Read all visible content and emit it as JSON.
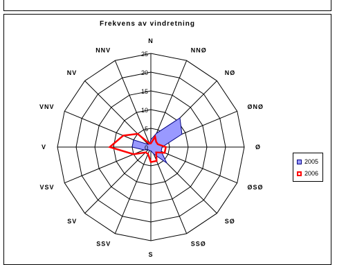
{
  "chart_data": {
    "type": "radar",
    "title": "Frekvens av vindretning",
    "categories": [
      "N",
      "NNØ",
      "NØ",
      "ØNØ",
      "Ø",
      "ØSØ",
      "SØ",
      "SSØ",
      "S",
      "SSV",
      "SV",
      "VSV",
      "V",
      "VNV",
      "NV",
      "NNV"
    ],
    "r_ticks": [
      0,
      5,
      10,
      15,
      20,
      25
    ],
    "r_range": [
      0,
      25
    ],
    "r_tick_labels": [
      "0",
      "5",
      "10",
      "15",
      "20",
      "25"
    ],
    "series": [
      {
        "name": "2005",
        "values": [
          2,
          4,
          11,
          9,
          3,
          3,
          6,
          2,
          1,
          1,
          1,
          2,
          5,
          5,
          1,
          1
        ],
        "fill": "#9999ff",
        "stroke": "#000080"
      },
      {
        "name": "2006",
        "values": [
          1,
          3,
          2,
          2,
          4,
          4,
          2,
          4,
          4,
          2,
          2,
          5,
          11,
          8,
          5,
          1
        ],
        "fill": "none",
        "stroke": "#ff0000"
      }
    ],
    "legend": {
      "position": "right"
    }
  }
}
